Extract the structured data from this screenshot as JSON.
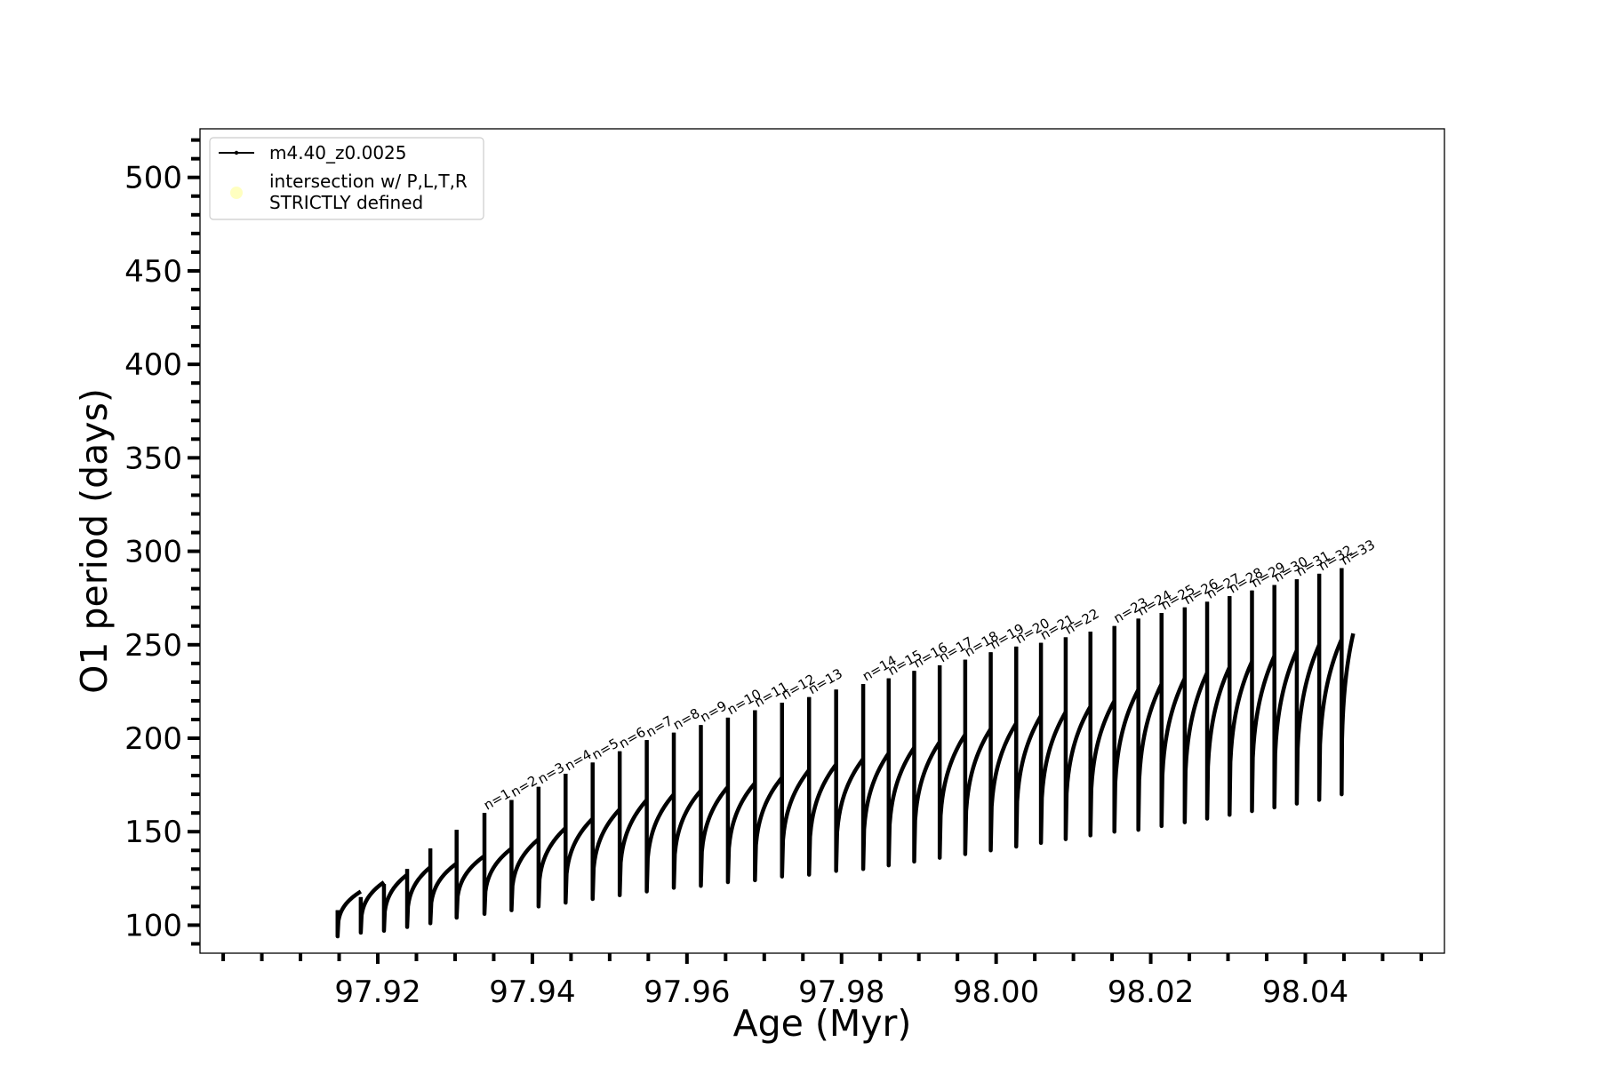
{
  "chart_data": {
    "type": "line",
    "title": "",
    "xlabel": "Age (Myr)",
    "ylabel": "O1 period (days)",
    "xlim": [
      97.897,
      98.058
    ],
    "ylim": [
      85,
      526
    ],
    "xticks": [
      97.92,
      97.94,
      97.96,
      97.98,
      98.0,
      98.02,
      98.04
    ],
    "xtick_labels": [
      "97.92",
      "97.94",
      "97.96",
      "97.98",
      "98.00",
      "98.02",
      "98.04"
    ],
    "yticks": [
      100,
      150,
      200,
      250,
      300,
      350,
      400,
      450,
      500
    ],
    "ytick_labels": [
      "100",
      "150",
      "200",
      "250",
      "300",
      "350",
      "400",
      "450",
      "500"
    ],
    "grid": false,
    "legend": {
      "placement": "top-left",
      "entries": [
        {
          "label": "m4.40_z0.0025",
          "marker": "line-with-dots",
          "color": "#000000"
        },
        {
          "label": "intersection w/ P,L,T,R\nSTRICTLY defined",
          "marker": "circle",
          "color": "#ffffc0"
        }
      ]
    },
    "colors": {
      "series": "#000000",
      "intersection": "#ffffc0"
    },
    "series": [
      {
        "name": "m4.40_z0.0025",
        "description_of_shape": "sawtooth pulses; each pulse starts at a vertical spike (start, peak) dropping to min then rising to max",
        "pulses": [
          {
            "start": 97.9148,
            "peak": 108,
            "min": 94,
            "max": 118
          },
          {
            "start": 97.9178,
            "peak": 115,
            "min": 96,
            "max": 123
          },
          {
            "start": 97.9208,
            "peak": 122,
            "min": 97,
            "max": 127
          },
          {
            "start": 97.9238,
            "peak": 130,
            "min": 99,
            "max": 131
          },
          {
            "start": 97.9268,
            "peak": 141,
            "min": 101,
            "max": 133
          },
          {
            "start": 97.9302,
            "peak": 151,
            "min": 104,
            "max": 137
          },
          {
            "start": 97.9338,
            "peak": 160,
            "min": 106,
            "max": 141
          },
          {
            "start": 97.9373,
            "peak": 167,
            "min": 108,
            "max": 146
          },
          {
            "start": 97.9408,
            "peak": 174,
            "min": 110,
            "max": 152
          },
          {
            "start": 97.9443,
            "peak": 181,
            "min": 112,
            "max": 157
          },
          {
            "start": 97.9478,
            "peak": 187,
            "min": 114,
            "max": 162
          },
          {
            "start": 97.9513,
            "peak": 193,
            "min": 116,
            "max": 167
          },
          {
            "start": 97.9548,
            "peak": 199,
            "min": 118,
            "max": 170
          },
          {
            "start": 97.9583,
            "peak": 203,
            "min": 120,
            "max": 172
          },
          {
            "start": 97.9618,
            "peak": 207,
            "min": 121,
            "max": 174
          },
          {
            "start": 97.9653,
            "peak": 211,
            "min": 123,
            "max": 176
          },
          {
            "start": 97.9688,
            "peak": 215,
            "min": 124,
            "max": 179
          },
          {
            "start": 97.9723,
            "peak": 219,
            "min": 126,
            "max": 183
          },
          {
            "start": 97.9758,
            "peak": 222,
            "min": 127,
            "max": 186
          },
          {
            "start": 97.9793,
            "peak": 226,
            "min": 129,
            "max": 189
          },
          {
            "start": 97.9828,
            "peak": 229,
            "min": 130,
            "max": 192
          },
          {
            "start": 97.9861,
            "peak": 232,
            "min": 132,
            "max": 195
          },
          {
            "start": 97.9894,
            "peak": 236,
            "min": 134,
            "max": 198
          },
          {
            "start": 97.9927,
            "peak": 239,
            "min": 136,
            "max": 202
          },
          {
            "start": 97.996,
            "peak": 242,
            "min": 138,
            "max": 205
          },
          {
            "start": 97.9993,
            "peak": 246,
            "min": 140,
            "max": 208
          },
          {
            "start": 98.0026,
            "peak": 249,
            "min": 142,
            "max": 212
          },
          {
            "start": 98.0058,
            "peak": 251,
            "min": 144,
            "max": 214
          },
          {
            "start": 98.009,
            "peak": 254,
            "min": 146,
            "max": 217
          },
          {
            "start": 98.0122,
            "peak": 257,
            "min": 148,
            "max": 220
          },
          {
            "start": 98.0153,
            "peak": 260,
            "min": 150,
            "max": 226
          },
          {
            "start": 98.0184,
            "peak": 264,
            "min": 151,
            "max": 229
          },
          {
            "start": 98.0214,
            "peak": 267,
            "min": 153,
            "max": 232
          },
          {
            "start": 98.0244,
            "peak": 270,
            "min": 155,
            "max": 235
          },
          {
            "start": 98.0273,
            "peak": 273,
            "min": 157,
            "max": 238
          },
          {
            "start": 98.0302,
            "peak": 276,
            "min": 159,
            "max": 241
          },
          {
            "start": 98.0331,
            "peak": 279,
            "min": 161,
            "max": 244
          },
          {
            "start": 98.036,
            "peak": 282,
            "min": 163,
            "max": 247
          },
          {
            "start": 98.0389,
            "peak": 285,
            "min": 165,
            "max": 250
          },
          {
            "start": 98.0418,
            "peak": 288,
            "min": 167,
            "max": 253
          },
          {
            "start": 98.0447,
            "peak": 291,
            "min": 170,
            "max": 256
          }
        ],
        "end": 98.0462
      }
    ],
    "annotations": [
      {
        "text": "n=1",
        "x": 97.9338,
        "y": 160
      },
      {
        "text": "n=2",
        "x": 97.9373,
        "y": 167
      },
      {
        "text": "n=3",
        "x": 97.9408,
        "y": 174
      },
      {
        "text": "n=4",
        "x": 97.9443,
        "y": 181
      },
      {
        "text": "n=5",
        "x": 97.9478,
        "y": 187
      },
      {
        "text": "n=6",
        "x": 97.9513,
        "y": 193
      },
      {
        "text": "n=7",
        "x": 97.9548,
        "y": 199
      },
      {
        "text": "n=8",
        "x": 97.9583,
        "y": 203
      },
      {
        "text": "n=9",
        "x": 97.9618,
        "y": 207
      },
      {
        "text": "n=10",
        "x": 97.9653,
        "y": 211
      },
      {
        "text": "n=11",
        "x": 97.9688,
        "y": 215
      },
      {
        "text": "n=12",
        "x": 97.9723,
        "y": 219
      },
      {
        "text": "n=13",
        "x": 97.9758,
        "y": 222
      },
      {
        "text": "n=14",
        "x": 97.9828,
        "y": 229
      },
      {
        "text": "n=15",
        "x": 97.9861,
        "y": 232
      },
      {
        "text": "n=16",
        "x": 97.9894,
        "y": 236
      },
      {
        "text": "n=17",
        "x": 97.9927,
        "y": 239
      },
      {
        "text": "n=18",
        "x": 97.996,
        "y": 242
      },
      {
        "text": "n=19",
        "x": 97.9993,
        "y": 246
      },
      {
        "text": "n=20",
        "x": 98.0026,
        "y": 249
      },
      {
        "text": "n=21",
        "x": 98.0058,
        "y": 251
      },
      {
        "text": "n=22",
        "x": 98.009,
        "y": 254
      },
      {
        "text": "n=23",
        "x": 98.0153,
        "y": 260
      },
      {
        "text": "n=24",
        "x": 98.0184,
        "y": 264
      },
      {
        "text": "n=25",
        "x": 98.0214,
        "y": 267
      },
      {
        "text": "n=26",
        "x": 98.0244,
        "y": 270
      },
      {
        "text": "n=27",
        "x": 98.0273,
        "y": 273
      },
      {
        "text": "n=28",
        "x": 98.0302,
        "y": 276
      },
      {
        "text": "n=29",
        "x": 98.0331,
        "y": 279
      },
      {
        "text": "n=30",
        "x": 98.036,
        "y": 282
      },
      {
        "text": "n=31",
        "x": 98.0389,
        "y": 285
      },
      {
        "text": "n=32",
        "x": 98.0418,
        "y": 288
      },
      {
        "text": "n=33",
        "x": 98.0447,
        "y": 291
      }
    ]
  }
}
